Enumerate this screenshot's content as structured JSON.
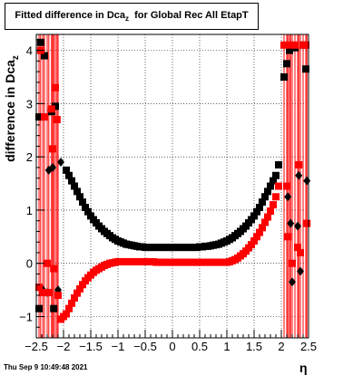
{
  "chart_data": {
    "type": "scatter",
    "title": "Fitted difference in Dca",
    "title_sub": "z",
    "title_suffix": "  for Global Rec All EtapT",
    "xlabel": "η",
    "ylabel": "difference in Dca",
    "ylabel_sub": "z",
    "xlim": [
      -2.5,
      2.5
    ],
    "ylim": [
      -1.4,
      4.3
    ],
    "x_ticks": [
      "−2.5",
      "−2",
      "−1.5",
      "−1",
      "−0.5",
      "0",
      "0.5",
      "1",
      "1.5",
      "2",
      "2.5"
    ],
    "y_ticks": [
      "−1",
      "0",
      "1",
      "2",
      "3",
      "4"
    ],
    "grid": true,
    "series": [
      {
        "color": "#000000",
        "marker": "square",
        "points": [
          [
            -2.45,
            2.75
          ],
          [
            -2.45,
            -0.85
          ],
          [
            -2.42,
            4.15
          ],
          [
            -2.38,
            -0.5
          ],
          [
            -2.35,
            3.9
          ],
          [
            -2.3,
            -0.55
          ],
          [
            -2.27,
            1.75
          ],
          [
            -2.22,
            2.85
          ],
          [
            -2.2,
            1.8
          ],
          [
            -2.18,
            -0.85
          ],
          [
            -2.15,
            2.95
          ],
          [
            -2.1,
            -0.5
          ],
          [
            -2.05,
            1.9
          ],
          [
            -1.95,
            1.75
          ],
          [
            -1.9,
            1.65
          ],
          [
            -1.85,
            1.55
          ],
          [
            -1.8,
            1.45
          ],
          [
            -1.75,
            1.35
          ],
          [
            -1.7,
            1.25
          ],
          [
            -1.65,
            1.15
          ],
          [
            -1.6,
            1.05
          ],
          [
            -1.55,
            0.97
          ],
          [
            -1.5,
            0.89
          ],
          [
            -1.45,
            0.82
          ],
          [
            -1.4,
            0.76
          ],
          [
            -1.35,
            0.7
          ],
          [
            -1.3,
            0.65
          ],
          [
            -1.25,
            0.6
          ],
          [
            -1.2,
            0.56
          ],
          [
            -1.15,
            0.52
          ],
          [
            -1.1,
            0.48
          ],
          [
            -1.05,
            0.45
          ],
          [
            -1.0,
            0.42
          ],
          [
            -0.95,
            0.4
          ],
          [
            -0.9,
            0.38
          ],
          [
            -0.85,
            0.36
          ],
          [
            -0.8,
            0.35
          ],
          [
            -0.75,
            0.34
          ],
          [
            -0.7,
            0.33
          ],
          [
            -0.65,
            0.32
          ],
          [
            -0.6,
            0.31
          ],
          [
            -0.55,
            0.31
          ],
          [
            -0.5,
            0.3
          ],
          [
            -0.45,
            0.3
          ],
          [
            -0.4,
            0.3
          ],
          [
            -0.35,
            0.3
          ],
          [
            -0.3,
            0.3
          ],
          [
            -0.25,
            0.3
          ],
          [
            -0.2,
            0.3
          ],
          [
            -0.15,
            0.3
          ],
          [
            -0.1,
            0.3
          ],
          [
            -0.05,
            0.3
          ],
          [
            0.0,
            0.3
          ],
          [
            0.05,
            0.3
          ],
          [
            0.1,
            0.3
          ],
          [
            0.15,
            0.3
          ],
          [
            0.2,
            0.3
          ],
          [
            0.25,
            0.3
          ],
          [
            0.3,
            0.3
          ],
          [
            0.35,
            0.3
          ],
          [
            0.4,
            0.3
          ],
          [
            0.45,
            0.3
          ],
          [
            0.5,
            0.31
          ],
          [
            0.55,
            0.31
          ],
          [
            0.6,
            0.32
          ],
          [
            0.65,
            0.32
          ],
          [
            0.7,
            0.33
          ],
          [
            0.75,
            0.34
          ],
          [
            0.8,
            0.35
          ],
          [
            0.85,
            0.36
          ],
          [
            0.9,
            0.38
          ],
          [
            0.95,
            0.4
          ],
          [
            1.0,
            0.42
          ],
          [
            1.05,
            0.45
          ],
          [
            1.1,
            0.48
          ],
          [
            1.15,
            0.52
          ],
          [
            1.2,
            0.56
          ],
          [
            1.25,
            0.6
          ],
          [
            1.3,
            0.65
          ],
          [
            1.35,
            0.7
          ],
          [
            1.4,
            0.76
          ],
          [
            1.45,
            0.82
          ],
          [
            1.5,
            0.89
          ],
          [
            1.55,
            0.97
          ],
          [
            1.6,
            1.05
          ],
          [
            1.65,
            1.15
          ],
          [
            1.7,
            1.25
          ],
          [
            1.75,
            1.35
          ],
          [
            1.8,
            1.45
          ],
          [
            1.85,
            1.55
          ],
          [
            1.9,
            1.65
          ],
          [
            1.95,
            1.85
          ],
          [
            2.05,
            3.5
          ],
          [
            2.1,
            3.75
          ],
          [
            2.12,
            1.25
          ],
          [
            2.15,
            4.0
          ],
          [
            2.17,
            0.75
          ],
          [
            2.2,
            -0.35
          ],
          [
            2.25,
            4.05
          ],
          [
            2.3,
            0.7
          ],
          [
            2.32,
            1.65
          ],
          [
            2.35,
            -0.15
          ],
          [
            2.4,
            4.1
          ],
          [
            2.45,
            3.65
          ],
          [
            2.47,
            1.55
          ]
        ]
      },
      {
        "color": "#ff0000",
        "marker": "square",
        "points": [
          [
            -2.45,
            -0.45
          ],
          [
            -2.42,
            4.0
          ],
          [
            -2.38,
            -0.55
          ],
          [
            -2.35,
            2.75
          ],
          [
            -2.3,
            0.0
          ],
          [
            -2.27,
            -0.55
          ],
          [
            -2.22,
            2.9
          ],
          [
            -2.2,
            2.15
          ],
          [
            -2.18,
            -0.1
          ],
          [
            -2.15,
            3.3
          ],
          [
            -2.12,
            2.7
          ],
          [
            -2.1,
            -0.6
          ],
          [
            -2.05,
            -1.05
          ],
          [
            -2.0,
            -1.0
          ],
          [
            -1.95,
            -0.95
          ],
          [
            -1.9,
            -0.85
          ],
          [
            -1.85,
            -0.75
          ],
          [
            -1.8,
            -0.65
          ],
          [
            -1.75,
            -0.56
          ],
          [
            -1.7,
            -0.48
          ],
          [
            -1.65,
            -0.4
          ],
          [
            -1.6,
            -0.33
          ],
          [
            -1.55,
            -0.27
          ],
          [
            -1.5,
            -0.22
          ],
          [
            -1.45,
            -0.17
          ],
          [
            -1.4,
            -0.13
          ],
          [
            -1.35,
            -0.1
          ],
          [
            -1.3,
            -0.07
          ],
          [
            -1.25,
            -0.04
          ],
          [
            -1.2,
            -0.02
          ],
          [
            -1.15,
            0.0
          ],
          [
            -1.1,
            0.01
          ],
          [
            -1.05,
            0.02
          ],
          [
            -1.0,
            0.03
          ],
          [
            -0.95,
            0.03
          ],
          [
            -0.9,
            0.03
          ],
          [
            -0.85,
            0.03
          ],
          [
            -0.8,
            0.03
          ],
          [
            -0.75,
            0.03
          ],
          [
            -0.7,
            0.03
          ],
          [
            -0.65,
            0.03
          ],
          [
            -0.6,
            0.03
          ],
          [
            -0.55,
            0.03
          ],
          [
            -0.5,
            0.03
          ],
          [
            -0.45,
            0.03
          ],
          [
            -0.4,
            0.03
          ],
          [
            -0.35,
            0.03
          ],
          [
            -0.3,
            0.02
          ],
          [
            -0.25,
            0.02
          ],
          [
            -0.2,
            0.02
          ],
          [
            -0.15,
            0.02
          ],
          [
            -0.1,
            0.02
          ],
          [
            -0.05,
            0.02
          ],
          [
            0.0,
            0.02
          ],
          [
            0.05,
            0.02
          ],
          [
            0.1,
            0.02
          ],
          [
            0.15,
            0.02
          ],
          [
            0.2,
            0.02
          ],
          [
            0.25,
            0.02
          ],
          [
            0.3,
            0.02
          ],
          [
            0.35,
            0.02
          ],
          [
            0.4,
            0.02
          ],
          [
            0.45,
            0.02
          ],
          [
            0.5,
            0.02
          ],
          [
            0.55,
            0.02
          ],
          [
            0.6,
            0.02
          ],
          [
            0.65,
            0.02
          ],
          [
            0.7,
            0.02
          ],
          [
            0.75,
            0.02
          ],
          [
            0.8,
            0.02
          ],
          [
            0.85,
            0.02
          ],
          [
            0.9,
            0.02
          ],
          [
            0.95,
            0.02
          ],
          [
            1.0,
            0.02
          ],
          [
            1.05,
            0.03
          ],
          [
            1.1,
            0.05
          ],
          [
            1.15,
            0.07
          ],
          [
            1.2,
            0.1
          ],
          [
            1.25,
            0.14
          ],
          [
            1.3,
            0.18
          ],
          [
            1.35,
            0.23
          ],
          [
            1.4,
            0.29
          ],
          [
            1.45,
            0.35
          ],
          [
            1.5,
            0.42
          ],
          [
            1.55,
            0.5
          ],
          [
            1.6,
            0.58
          ],
          [
            1.65,
            0.67
          ],
          [
            1.7,
            0.77
          ],
          [
            1.75,
            0.87
          ],
          [
            1.8,
            0.98
          ],
          [
            1.85,
            1.1
          ],
          [
            1.9,
            1.25
          ],
          [
            1.95,
            1.45
          ],
          [
            2.05,
            4.1
          ],
          [
            2.1,
            1.45
          ],
          [
            2.12,
            0.5
          ],
          [
            2.15,
            4.1
          ],
          [
            2.2,
            0.0
          ],
          [
            2.25,
            4.1
          ],
          [
            2.3,
            0.3
          ],
          [
            2.32,
            1.85
          ],
          [
            2.35,
            0.2
          ],
          [
            2.4,
            4.1
          ],
          [
            2.45,
            4.1
          ],
          [
            2.47,
            0.75
          ]
        ]
      }
    ],
    "error_bar_x": [
      -2.45,
      -2.42,
      -2.38,
      -2.35,
      -2.3,
      -2.27,
      -2.22,
      -2.2,
      -2.18,
      -2.15,
      -2.12,
      -2.1,
      2.05,
      2.1,
      2.12,
      2.15,
      2.17,
      2.2,
      2.25,
      2.3,
      2.32,
      2.35,
      2.4,
      2.45,
      2.47
    ]
  },
  "footer": {
    "timestamp": "Thu Sep  9 10:49:48 2021"
  }
}
